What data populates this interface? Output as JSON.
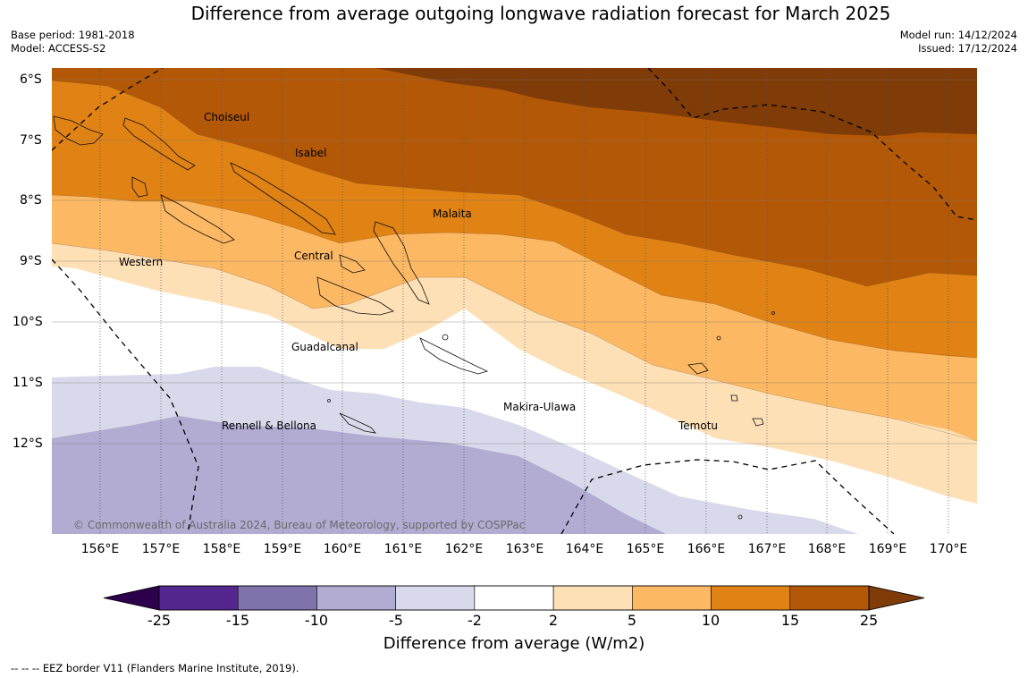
{
  "title": "Difference from average outgoing longwave radiation forecast for March 2025",
  "meta_left": {
    "base_period": "Base period: 1981-2018",
    "model": "Model: ACCESS-S2"
  },
  "meta_right": {
    "model_run": "Model run: 14/12/2024",
    "issued": "Issued: 17/12/2024"
  },
  "map": {
    "lon_labels": [
      "156°E",
      "157°E",
      "158°E",
      "159°E",
      "160°E",
      "161°E",
      "162°E",
      "163°E",
      "164°E",
      "165°E",
      "166°E",
      "167°E",
      "168°E",
      "169°E",
      "170°E"
    ],
    "lat_labels": [
      "6°S",
      "7°S",
      "8°S",
      "9°S",
      "10°S",
      "11°S",
      "12°S"
    ],
    "regions": [
      "Choiseul",
      "Isabel",
      "Malaita",
      "Western",
      "Central",
      "Guadalcanal",
      "Makira-Ulawa",
      "Rennell & Bellona",
      "Temotu"
    ],
    "copyright": "© Commonwealth of Australia 2024, Bureau of Meteorology, supported by COSPPac"
  },
  "colorbar": {
    "ticks": [
      "-25",
      "-15",
      "-10",
      "-5",
      "-2",
      "2",
      "5",
      "10",
      "15",
      "25"
    ],
    "bin_colors": [
      "#54278f",
      "#8073ac",
      "#b2abd2",
      "#d8daeb",
      "#ffffff",
      "#fee0b6",
      "#fdb863",
      "#e08214",
      "#b35806"
    ],
    "under_color": "#2d004b",
    "over_color": "#7f3b08",
    "title": "Difference from average (W/m2)"
  },
  "footer": "--  --  -- EEZ border V11 (Flanders Marine Institute, 2019)."
}
